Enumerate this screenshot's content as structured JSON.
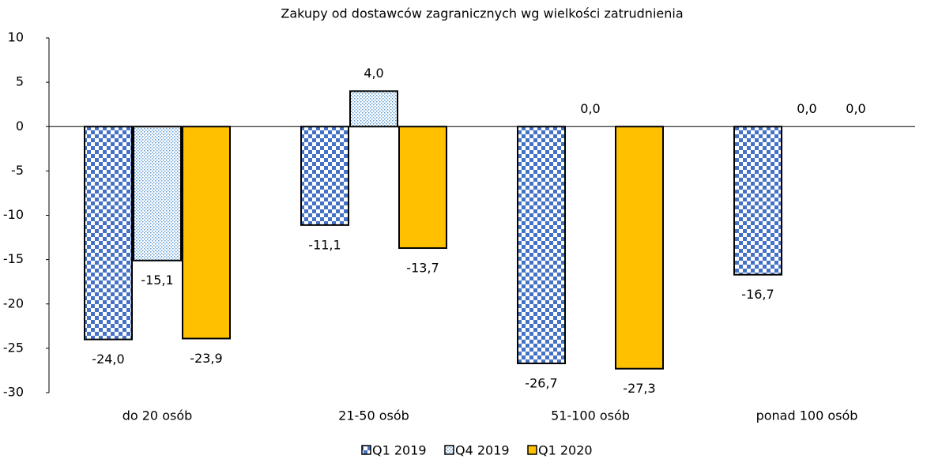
{
  "chart_data": {
    "type": "bar",
    "title": "Zakupy od dostawców zagranicznych wg wielkości zatrudnienia",
    "categories": [
      "do 20 osób",
      "21-50 osób",
      "51-100 osób",
      "ponad 100 osób"
    ],
    "series": [
      {
        "name": "Q1 2019",
        "color": "#4472c4",
        "pattern": "checker",
        "values": [
          -24.0,
          -11.1,
          -26.7,
          -16.7
        ],
        "value_labels": [
          "-24,0",
          "-11,1",
          "-26,7",
          "-16,7"
        ]
      },
      {
        "name": "Q4 2019",
        "color": "#5b9bd5",
        "pattern": "dots",
        "values": [
          -15.1,
          4.0,
          0.0,
          0.0
        ],
        "value_labels": [
          "-15,1",
          "4,0",
          "0,0",
          "0,0"
        ]
      },
      {
        "name": "Q1 2020",
        "color": "#ffc000",
        "pattern": "solid",
        "values": [
          -23.9,
          -13.7,
          -27.3,
          0.0
        ],
        "value_labels": [
          "-23,9",
          "-13,7",
          "-27,3",
          "0,0"
        ]
      }
    ],
    "ylim": [
      -30,
      10
    ],
    "yticks": [
      10,
      5,
      0,
      -5,
      -10,
      -15,
      -20,
      -25,
      -30
    ]
  }
}
